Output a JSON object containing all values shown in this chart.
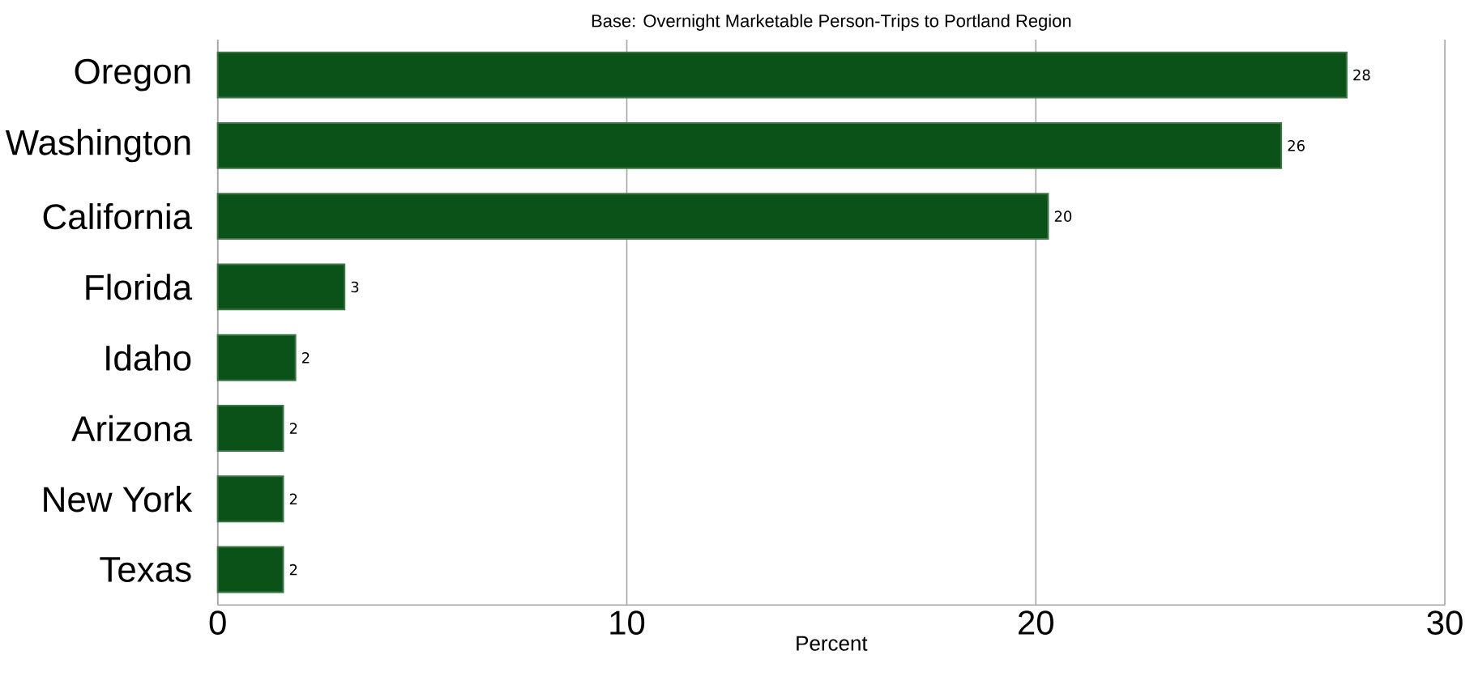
{
  "chart_data": {
    "type": "bar",
    "orientation": "horizontal",
    "title": "Base: Overnight Marketable Person-Trips to Portland Region",
    "xlabel": "Percent",
    "categories": [
      "Oregon",
      "Washington",
      "California",
      "Florida",
      "Idaho",
      "Arizona",
      "New York",
      "Texas"
    ],
    "values": [
      27.6,
      26.0,
      20.3,
      3.1,
      1.9,
      1.6,
      1.6,
      1.6
    ],
    "value_labels": [
      "28",
      "26",
      "20",
      "3",
      "2",
      "2",
      "2",
      "2"
    ],
    "color": "#0b5218",
    "xlim": [
      0,
      30
    ],
    "xticks": [
      0,
      10,
      20,
      30
    ],
    "grid": "x"
  }
}
